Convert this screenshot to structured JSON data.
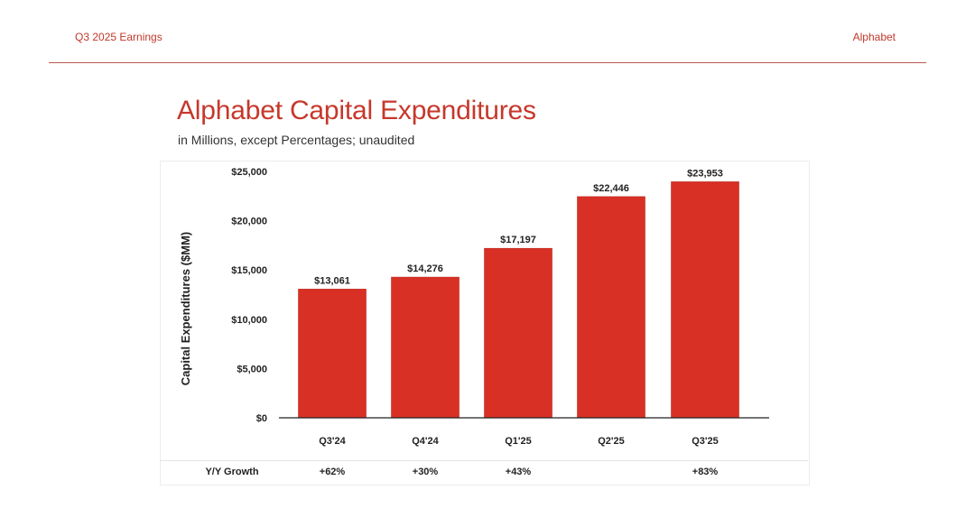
{
  "header": {
    "left": "Q3 2025 Earnings",
    "right": "Alphabet"
  },
  "page": {
    "title": "Alphabet Capital Expenditures",
    "subtitle": "in Millions, except Percentages; unaudited"
  },
  "colors": {
    "bar": "#d93025",
    "accent": "#c6382b",
    "axis": "#222222"
  },
  "chart_data": {
    "type": "bar",
    "categories": [
      "Q3'24",
      "Q4'24",
      "Q1'25",
      "Q2'25",
      "Q3'25"
    ],
    "values": [
      13061,
      14276,
      17197,
      22446,
      23953
    ],
    "value_labels": [
      "$13,061",
      "$14,276",
      "$17,197",
      "$22,446",
      "$23,953"
    ],
    "ylabel": "Capital Expenditures ($MM)",
    "ylim": [
      0,
      25000
    ],
    "yticks": [
      0,
      5000,
      10000,
      15000,
      20000,
      25000
    ],
    "ytick_labels": [
      "$0",
      "$5,000",
      "$10,000",
      "$15,000",
      "$20,000",
      "$25,000"
    ],
    "grid": false,
    "growth_row": {
      "label": "Y/Y Growth",
      "values": [
        "+62%",
        "+30%",
        "+43%",
        "",
        "+83%"
      ]
    }
  }
}
